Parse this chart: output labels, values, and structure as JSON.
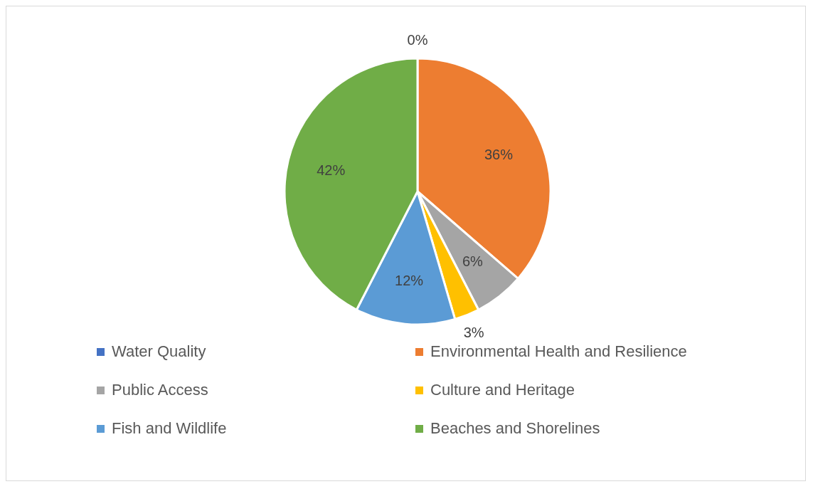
{
  "chart_data": {
    "type": "pie",
    "categories": [
      "Water Quality",
      "Environmental Health and Resilience",
      "Public Access",
      "Culture and Heritage",
      "Fish and Wildlife",
      "Beaches and Shorelines"
    ],
    "values": [
      0,
      36,
      6,
      3,
      12,
      42
    ],
    "value_labels": [
      "0%",
      "36%",
      "6%",
      "3%",
      "12%",
      "42%"
    ],
    "colors": [
      "#4472c4",
      "#ed7d31",
      "#a5a5a5",
      "#ffc000",
      "#5b9bd5",
      "#70ad47"
    ],
    "legend": "bottom"
  }
}
